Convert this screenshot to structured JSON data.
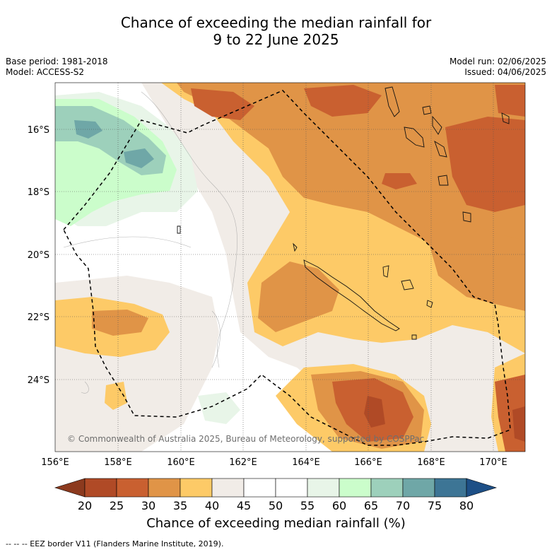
{
  "title_line1": "Chance of exceeding the median rainfall for",
  "title_line2": "9 to 22 June 2025",
  "meta_left": {
    "base_period": "Base period: 1981-2018",
    "model": "Model: ACCESS-S2"
  },
  "meta_right": {
    "model_run": "Model run: 02/06/2025",
    "issued": "Issued: 04/06/2025"
  },
  "lat_labels": [
    "16°S",
    "18°S",
    "20°S",
    "22°S",
    "24°S"
  ],
  "lon_labels": [
    "156°E",
    "158°E",
    "160°E",
    "162°E",
    "164°E",
    "166°E",
    "168°E",
    "170°E"
  ],
  "copyright": "© Commonwealth of Australia 2025, Bureau of Meteorology, supported by COSPPac",
  "colorbar": {
    "ticks": [
      "20",
      "25",
      "30",
      "35",
      "40",
      "45",
      "50",
      "55",
      "60",
      "65",
      "70",
      "75",
      "80"
    ],
    "colors": [
      "#8c3a1e",
      "#b04a26",
      "#c96030",
      "#e09447",
      "#fdca67",
      "#f1ece7",
      "#ffffff",
      "#ffffff",
      "#e8f5e8",
      "#cbfdcb",
      "#9dd0bb",
      "#6fa7a7",
      "#3d7595",
      "#1d4f86"
    ],
    "label": "Chance of exceeding median rainfall (%)"
  },
  "legend_note": "-- -- -- EEZ border V11 (Flanders Marine Institute, 2019)."
}
